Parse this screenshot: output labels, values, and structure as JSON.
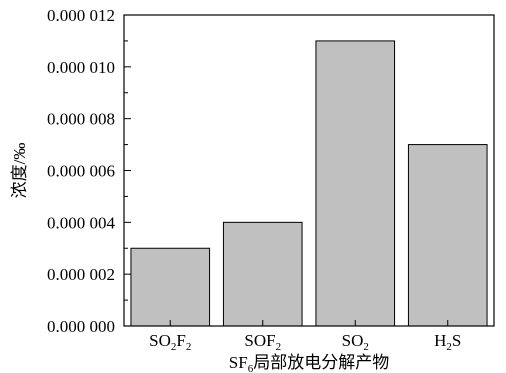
{
  "chart_data": {
    "type": "bar",
    "categories": [
      {
        "parts": [
          [
            "SO",
            ""
          ],
          [
            "2",
            "sub"
          ],
          [
            "F",
            ""
          ],
          [
            "2",
            "sub"
          ]
        ]
      },
      {
        "parts": [
          [
            "SOF",
            ""
          ],
          [
            "2",
            "sub"
          ]
        ]
      },
      {
        "parts": [
          [
            "SO",
            ""
          ],
          [
            "2",
            "sub"
          ]
        ]
      },
      {
        "parts": [
          [
            "H",
            ""
          ],
          [
            "2",
            "sub"
          ],
          [
            "S",
            ""
          ]
        ]
      }
    ],
    "values": [
      3e-06,
      4e-06,
      1.1e-05,
      7e-06
    ],
    "ylim": [
      0,
      1.2e-05
    ],
    "yticks": [
      {
        "value": 0.0,
        "label": "0.000 000"
      },
      {
        "value": 2e-06,
        "label": "0.000 002"
      },
      {
        "value": 4e-06,
        "label": "0.000 004"
      },
      {
        "value": 6e-06,
        "label": "0.000 006"
      },
      {
        "value": 8e-06,
        "label": "0.000 008"
      },
      {
        "value": 1e-05,
        "label": "0.000 010"
      },
      {
        "value": 1.2e-05,
        "label": "0.000 012"
      }
    ],
    "ylabel": "浓度/‰",
    "xlabel": {
      "parts": [
        [
          "SF",
          ""
        ],
        [
          "6",
          "sub"
        ],
        [
          "局部放电分解产物",
          ""
        ]
      ]
    },
    "bar_color": "#c0c0c0",
    "grid": false
  }
}
